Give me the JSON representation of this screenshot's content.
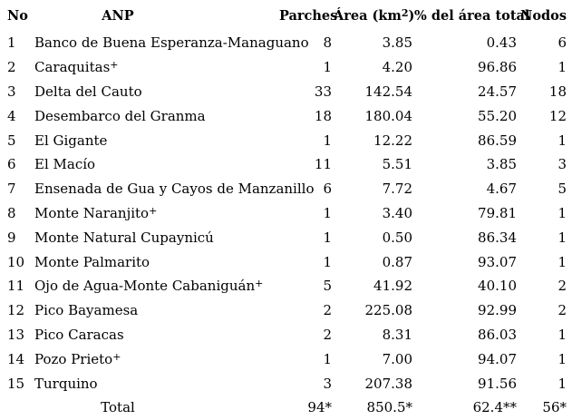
{
  "table": {
    "columns": [
      {
        "label": "No"
      },
      {
        "label": "ANP"
      },
      {
        "label": "Parches"
      },
      {
        "label_pre": "Área (km",
        "label_sup": "2",
        "label_post": ")"
      },
      {
        "label": "% del área total"
      },
      {
        "label": "Nodos"
      }
    ],
    "rows": [
      {
        "no": "1",
        "name": "Banco de Buena Esperanza-Managuano",
        "sup": "",
        "parches": "8",
        "area": "3.85",
        "pct": "0.43",
        "nodos": "6"
      },
      {
        "no": "2",
        "name": "Caraquitas",
        "sup": "+",
        "parches": "1",
        "area": "4.20",
        "pct": "96.86",
        "nodos": "1"
      },
      {
        "no": "3",
        "name": "Delta del Cauto",
        "sup": "",
        "parches": "33",
        "area": "142.54",
        "pct": "24.57",
        "nodos": "18"
      },
      {
        "no": "4",
        "name": "Desembarco del Granma",
        "sup": "",
        "parches": "18",
        "area": "180.04",
        "pct": "55.20",
        "nodos": "12"
      },
      {
        "no": "5",
        "name": "El Gigante",
        "sup": "",
        "parches": "1",
        "area": "12.22",
        "pct": "86.59",
        "nodos": "1"
      },
      {
        "no": "6",
        "name": "El Macío",
        "sup": "",
        "parches": "11",
        "area": "5.51",
        "pct": "3.85",
        "nodos": "3"
      },
      {
        "no": "7",
        "name": "Ensenada de Gua y Cayos de Manzanillo",
        "sup": "",
        "parches": "6",
        "area": "7.72",
        "pct": "4.67",
        "nodos": "5"
      },
      {
        "no": "8",
        "name": "Monte Naranjito",
        "sup": "+",
        "parches": "1",
        "area": "3.40",
        "pct": "79.81",
        "nodos": "1"
      },
      {
        "no": "9",
        "name": "Monte Natural Cupaynicú",
        "sup": "",
        "parches": "1",
        "area": "0.50",
        "pct": "86.34",
        "nodos": "1"
      },
      {
        "no": "10",
        "name": "Monte Palmarito",
        "sup": "",
        "parches": "1",
        "area": "0.87",
        "pct": "93.07",
        "nodos": "1"
      },
      {
        "no": "11",
        "name": "Ojo de Agua-Monte Cabaniguán",
        "sup": "+",
        "parches": "5",
        "area": "41.92",
        "pct": "40.10",
        "nodos": "2"
      },
      {
        "no": "12",
        "name": "Pico Bayamesa",
        "sup": "",
        "parches": "2",
        "area": "225.08",
        "pct": "92.99",
        "nodos": "2"
      },
      {
        "no": "13",
        "name": "Pico Caracas",
        "sup": "",
        "parches": "2",
        "area": "8.31",
        "pct": "86.03",
        "nodos": "1"
      },
      {
        "no": "14",
        "name": "Pozo Prieto",
        "sup": "+",
        "parches": "1",
        "area": "7.00",
        "pct": "94.07",
        "nodos": "1"
      },
      {
        "no": "15",
        "name": "Turquino",
        "sup": "",
        "parches": "3",
        "area": "207.38",
        "pct": "91.56",
        "nodos": "1"
      }
    ],
    "total": {
      "label": "Total",
      "parches": "94*",
      "area": "850.5*",
      "pct": "62.4**",
      "nodos": "56*"
    }
  }
}
